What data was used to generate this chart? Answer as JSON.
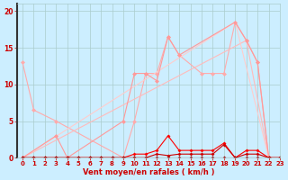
{
  "background_color": "#cceeff",
  "grid_color": "#aacccc",
  "xlabel": "Vent moyen/en rafales ( km/h )",
  "xlabel_color": "#cc0000",
  "tick_color": "#cc0000",
  "xlim": [
    -0.5,
    23
  ],
  "ylim": [
    0,
    21
  ],
  "xticks": [
    0,
    1,
    2,
    3,
    4,
    5,
    6,
    7,
    8,
    9,
    10,
    11,
    12,
    13,
    14,
    15,
    16,
    17,
    18,
    19,
    20,
    21,
    22,
    23
  ],
  "yticks": [
    0,
    5,
    10,
    15,
    20
  ],
  "series": [
    {
      "x": [
        0,
        1,
        3,
        9,
        10,
        11,
        12,
        13,
        14,
        16,
        17,
        18,
        19,
        20,
        21,
        22
      ],
      "y": [
        13,
        6.5,
        5,
        0,
        5,
        11.5,
        11.5,
        16.5,
        14,
        11.5,
        11.5,
        11.5,
        18.5,
        16,
        13,
        0
      ],
      "color": "#ffaaaa",
      "lw": 0.8,
      "marker": "D",
      "ms": 2.5
    },
    {
      "x": [
        0,
        20,
        22
      ],
      "y": [
        0,
        16,
        0
      ],
      "color": "#ffbbbb",
      "lw": 0.8,
      "marker": "D",
      "ms": 2.5
    },
    {
      "x": [
        0,
        19,
        22
      ],
      "y": [
        0,
        18.5,
        0
      ],
      "color": "#ffcccc",
      "lw": 0.8,
      "marker": "D",
      "ms": 2.5
    },
    {
      "comment": "pink wiggly line - 3->3, 9->5, 10-12->11, 13->16, 14->14",
      "x": [
        0,
        3,
        4,
        9,
        10,
        11,
        12,
        13,
        14,
        19,
        20,
        21,
        22
      ],
      "y": [
        0,
        3,
        0,
        5,
        11.5,
        11.5,
        10.5,
        16.5,
        14,
        18.5,
        16,
        13,
        0
      ],
      "color": "#ff9999",
      "lw": 0.8,
      "marker": "D",
      "ms": 2.5
    },
    {
      "x": [
        0,
        1,
        2,
        3,
        4,
        5,
        6,
        7,
        8,
        9,
        10,
        11,
        12,
        13,
        14,
        15,
        16,
        17,
        18,
        19,
        20,
        21,
        22,
        23
      ],
      "y": [
        0,
        0,
        0,
        0,
        0,
        0,
        0,
        0,
        0,
        0,
        0.5,
        0.5,
        1,
        3,
        1,
        1,
        1,
        1,
        2,
        0,
        1,
        1,
        0,
        0
      ],
      "color": "#ff0000",
      "lw": 0.8,
      "marker": "D",
      "ms": 2.0
    },
    {
      "x": [
        0,
        1,
        2,
        3,
        4,
        5,
        6,
        7,
        8,
        9,
        10,
        11,
        12,
        13,
        14,
        15,
        16,
        17,
        18,
        19,
        20,
        21,
        22,
        23
      ],
      "y": [
        0,
        0,
        0,
        0,
        0,
        0,
        0,
        0,
        0,
        0,
        0,
        0,
        0.5,
        0.3,
        0.5,
        0.5,
        0.5,
        0.5,
        1.8,
        0,
        0.5,
        0.5,
        0,
        0
      ],
      "color": "#cc0000",
      "lw": 0.8,
      "marker": "D",
      "ms": 2.0
    },
    {
      "x": [
        0,
        1,
        2,
        3,
        4,
        5,
        6,
        7,
        8,
        9,
        10,
        11,
        12,
        13,
        14,
        15,
        16,
        17,
        18,
        19,
        20,
        21,
        22,
        23
      ],
      "y": [
        0,
        0,
        0,
        0,
        0,
        0,
        0,
        0,
        0,
        0,
        0,
        0,
        0,
        0,
        0,
        0,
        0,
        0,
        0,
        0,
        0,
        0,
        0,
        0
      ],
      "color": "#990000",
      "lw": 0.8,
      "marker": "D",
      "ms": 2.0
    }
  ]
}
